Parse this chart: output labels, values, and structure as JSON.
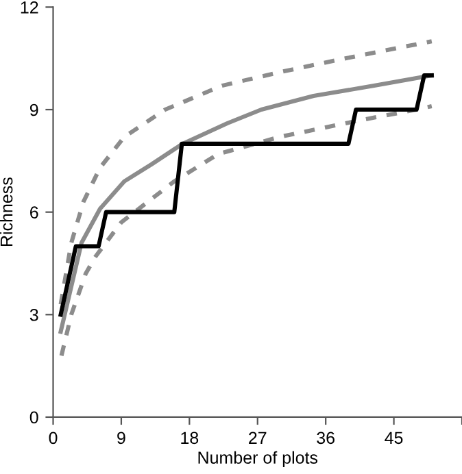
{
  "chart_data": {
    "type": "line",
    "xlabel": "Number of plots",
    "ylabel": "Richness",
    "xlim": [
      0,
      54
    ],
    "xticks": [
      0,
      9,
      18,
      27,
      36,
      45,
      {
        "value": 54,
        "label": null
      }
    ],
    "ylim": [
      0,
      12
    ],
    "yticks": [
      0,
      3,
      6,
      9,
      12
    ],
    "grid": false,
    "legend": false,
    "marker": "none",
    "series": [
      {
        "color": "#8c8c8c",
        "line_style": "dashed",
        "x": [
          1,
          2.4,
          4,
          6.2,
          9.4,
          14.8,
          22.3,
          30,
          38.6,
          50
        ],
        "values": [
          3.3,
          5.1,
          6.3,
          7.3,
          8.2,
          9.0,
          9.7,
          10.1,
          10.5,
          11.0
        ]
      },
      {
        "color": "#8c8c8c",
        "line_style": "dashed",
        "x": [
          1.1,
          2.4,
          4.3,
          5.6,
          9,
          16,
          21.8,
          29.9,
          40.8,
          48,
          50
        ],
        "values": [
          1.8,
          3.0,
          4.2,
          4.7,
          5.7,
          6.9,
          7.7,
          8.2,
          8.7,
          9.0,
          9.1
        ]
      },
      {
        "color": "#8c8c8c",
        "line_style": "solid",
        "x": [
          1,
          3.75,
          6.2,
          9.4,
          13,
          17.1,
          23,
          27.5,
          34.4,
          42.4,
          50
        ],
        "values": [
          2.5,
          5.1,
          6.1,
          6.9,
          7.4,
          8.0,
          8.6,
          9.0,
          9.4,
          9.7,
          10.0
        ]
      },
      {
        "color": "#000000",
        "line_style": "solid",
        "x": [
          1,
          3,
          6,
          7,
          16,
          17,
          39,
          40,
          48,
          49,
          50
        ],
        "values": [
          3,
          5,
          5,
          6,
          6,
          8,
          8,
          9,
          9,
          10,
          10
        ]
      }
    ]
  }
}
